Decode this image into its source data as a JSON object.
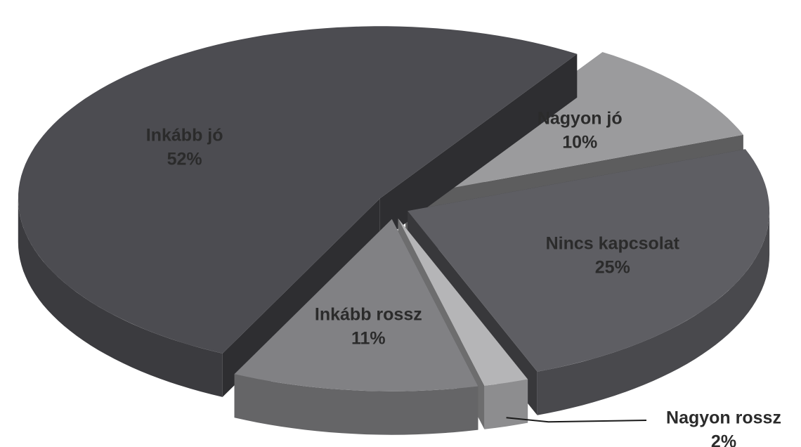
{
  "chart_data": {
    "type": "pie3d",
    "categories": [
      "Nagyon jó",
      "Nincs kapcsolat",
      "Nagyon rossz",
      "Inkább rossz",
      "Inkább jó"
    ],
    "values": [
      10,
      25,
      2,
      11,
      52
    ],
    "value_labels": [
      "10%",
      "25%",
      "2%",
      "11%",
      "52%"
    ],
    "colors": [
      "#9b9b9d",
      "#5e5e63",
      "#b5b5b7",
      "#818184",
      "#4c4c51"
    ]
  }
}
